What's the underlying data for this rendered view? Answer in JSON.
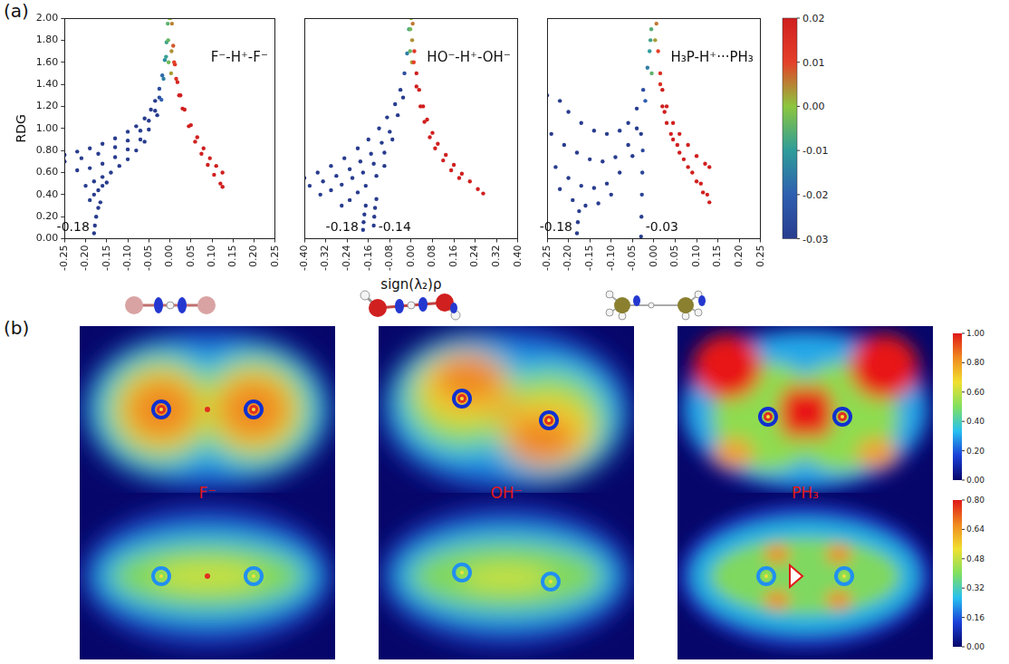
{
  "panel_labels": [
    "(a)",
    "(b)"
  ],
  "chart_data": [
    {
      "type": "scatter",
      "title": "F⁻-H⁺-F⁻",
      "ylabel": "RDG",
      "grid": false,
      "xlim": [
        -0.25,
        0.25
      ],
      "xticks": [
        -0.25,
        {
          "value": -0.2,
          "label": "-0.20"
        },
        -0.15,
        {
          "value": -0.1,
          "label": "-0.10"
        },
        -0.05,
        {
          "value": 0,
          "label": "0.00"
        },
        0.05,
        {
          "value": 0.1,
          "label": "0.10"
        },
        0.15,
        {
          "value": 0.2,
          "label": "0.20"
        },
        0.25
      ],
      "ylim": [
        0,
        2
      ],
      "yticks": [
        {
          "value": 0,
          "label": "0.00"
        },
        {
          "value": 0.2,
          "label": "0.20"
        },
        {
          "value": 0.4,
          "label": "0.40"
        },
        {
          "value": 0.6,
          "label": "0.60"
        },
        {
          "value": 0.8,
          "label": "0.80"
        },
        {
          "value": 1,
          "label": "1.00"
        },
        {
          "value": 1.2,
          "label": "1.20"
        },
        {
          "value": 1.4,
          "label": "1.40"
        },
        {
          "value": 1.6,
          "label": "1.60"
        },
        {
          "value": 1.8,
          "label": "1.80"
        },
        {
          "value": 2,
          "label": "2.00"
        }
      ],
      "x": [
        -0.25,
        -0.22,
        -0.19,
        -0.16,
        -0.13,
        -0.1,
        -0.08,
        -0.06,
        -0.045,
        -0.035,
        -0.025,
        -0.018,
        -0.012,
        -0.008,
        -0.005,
        -0.25,
        -0.21,
        -0.17,
        -0.13,
        -0.1,
        -0.07,
        -0.05,
        -0.035,
        -0.025,
        -0.015,
        -0.009,
        -0.22,
        -0.19,
        -0.16,
        -0.13,
        -0.1,
        -0.07,
        -0.05,
        -0.03,
        -0.02,
        -0.2,
        -0.18,
        -0.16,
        -0.14,
        -0.12,
        -0.1,
        -0.08,
        -0.06,
        -0.19,
        -0.18,
        -0.17,
        -0.16,
        -0.15,
        -0.18,
        -0.178,
        -0.175,
        -0.17,
        -0.165,
        -0.004,
        -0.003,
        -0.001,
        0.001,
        0.003,
        0.004,
        0.005,
        0.008,
        0.012,
        0.018,
        0.025,
        0.035,
        0.05,
        0.065,
        0.08,
        0.095,
        0.11,
        0.125,
        0.01,
        0.015,
        0.022,
        0.03,
        0.045,
        0.06,
        0.075,
        0.09,
        0.105,
        0.12,
        0.125
      ],
      "values": [
        0.76,
        0.79,
        0.82,
        0.86,
        0.91,
        0.97,
        1.02,
        1.09,
        1.17,
        1.25,
        1.36,
        1.48,
        1.62,
        1.78,
        1.95,
        0.7,
        0.73,
        0.77,
        0.83,
        0.89,
        0.98,
        1.07,
        1.16,
        1.28,
        1.45,
        1.65,
        0.62,
        0.64,
        0.68,
        0.74,
        0.81,
        0.9,
        0.99,
        1.12,
        1.26,
        0.48,
        0.52,
        0.56,
        0.6,
        0.66,
        0.72,
        0.8,
        0.88,
        0.35,
        0.4,
        0.44,
        0.48,
        0.51,
        0.05,
        0.12,
        0.2,
        0.28,
        0.33,
        1.8,
        1.6,
        2.0,
        2.0,
        1.5,
        1.7,
        1.95,
        1.75,
        1.58,
        1.42,
        1.3,
        1.17,
        1.03,
        0.92,
        0.82,
        0.73,
        0.66,
        0.6,
        1.6,
        1.45,
        1.3,
        1.18,
        1.02,
        0.88,
        0.77,
        0.67,
        0.58,
        0.5,
        0.47
      ],
      "annotations": [
        {
          "text": "-0.18",
          "x": -0.18,
          "y": 0.1
        }
      ]
    },
    {
      "type": "scatter",
      "title": "HO⁻-H⁺-OH⁻",
      "xlabel": "sign(λ₂)ρ",
      "grid": false,
      "tick_labels": "x",
      "xlim": [
        -0.4,
        0.4
      ],
      "xticks": [
        {
          "value": -0.4,
          "label": "-0.40"
        },
        -0.32,
        -0.24,
        -0.16,
        -0.08,
        {
          "value": 0,
          "label": "0.00"
        },
        0.08,
        0.16,
        0.24,
        0.32,
        {
          "value": 0.4,
          "label": "0.40"
        }
      ],
      "ylim": [
        0,
        2
      ],
      "x": [
        -0.4,
        -0.35,
        -0.3,
        -0.25,
        -0.2,
        -0.16,
        -0.12,
        -0.09,
        -0.06,
        -0.04,
        -0.025,
        -0.015,
        -0.008,
        -0.38,
        -0.33,
        -0.28,
        -0.23,
        -0.19,
        -0.15,
        -0.11,
        -0.08,
        -0.05,
        -0.03,
        -0.34,
        -0.3,
        -0.26,
        -0.22,
        -0.18,
        -0.14,
        -0.1,
        -0.07,
        -0.26,
        -0.23,
        -0.2,
        -0.17,
        -0.13,
        -0.1,
        -0.18,
        -0.178,
        -0.175,
        -0.17,
        -0.14,
        -0.138,
        -0.135,
        -0.13,
        -0.004,
        -0.003,
        0,
        0.003,
        0.004,
        0.006,
        0.012,
        0.02,
        0.03,
        0.045,
        0.06,
        0.08,
        0.1,
        0.13,
        0.16,
        0.19,
        0.22,
        0.25,
        0.27,
        0.01,
        0.02,
        0.035,
        0.05,
        0.07,
        0.09,
        0.12,
        0.15,
        0.18
      ],
      "values": [
        0.55,
        0.6,
        0.66,
        0.73,
        0.82,
        0.9,
        1.0,
        1.1,
        1.22,
        1.35,
        1.5,
        1.68,
        1.9,
        0.48,
        0.52,
        0.57,
        0.63,
        0.7,
        0.77,
        0.87,
        0.97,
        1.12,
        1.28,
        0.4,
        0.44,
        0.49,
        0.55,
        0.6,
        0.68,
        0.78,
        0.9,
        0.3,
        0.35,
        0.42,
        0.48,
        0.57,
        0.66,
        0.08,
        0.15,
        0.22,
        0.3,
        0.12,
        0.2,
        0.28,
        0.36,
        1.7,
        1.9,
        2.0,
        1.6,
        1.8,
        1.95,
        1.7,
        1.5,
        1.35,
        1.2,
        1.08,
        0.96,
        0.86,
        0.76,
        0.67,
        0.59,
        0.52,
        0.45,
        0.41,
        1.6,
        1.38,
        1.2,
        1.06,
        0.92,
        0.82,
        0.71,
        0.62,
        0.55
      ],
      "annotations": [
        {
          "text": "-0.18",
          "x": -0.18,
          "y": 0.1
        },
        {
          "text": "-0.14",
          "x": -0.14,
          "y": 0.1
        }
      ]
    },
    {
      "type": "scatter",
      "title": "H₃P-H⁺···PH₃",
      "grid": false,
      "tick_labels": "x",
      "xlim": [
        -0.25,
        0.25
      ],
      "xticks": [
        -0.25,
        {
          "value": -0.2,
          "label": "-0.20"
        },
        -0.15,
        {
          "value": -0.1,
          "label": "-0.10"
        },
        -0.05,
        {
          "value": 0,
          "label": "0.00"
        },
        0.05,
        {
          "value": 0.1,
          "label": "0.10"
        },
        0.15,
        {
          "value": 0.2,
          "label": "0.20"
        },
        0.25
      ],
      "ylim": [
        0,
        2
      ],
      "x": [
        -0.25,
        -0.22,
        -0.2,
        -0.17,
        -0.14,
        -0.11,
        -0.08,
        -0.06,
        -0.04,
        -0.025,
        -0.015,
        -0.008,
        -0.24,
        -0.21,
        -0.18,
        -0.15,
        -0.12,
        -0.09,
        -0.06,
        -0.04,
        -0.02,
        -0.23,
        -0.2,
        -0.17,
        -0.14,
        -0.11,
        -0.08,
        -0.05,
        -0.03,
        -0.22,
        -0.19,
        -0.16,
        -0.13,
        -0.1,
        -0.18,
        -0.178,
        -0.175,
        -0.03,
        -0.029,
        -0.028,
        -0.027,
        -0.026,
        -0.01,
        -0.006,
        -0.005,
        0.003,
        0.006,
        0.01,
        0.015,
        0.02,
        0.03,
        0.045,
        0.06,
        0.08,
        0.1,
        0.12,
        0.13,
        0.02,
        0.03,
        0.045,
        0.06,
        0.08,
        0.1,
        0.115,
        0.13,
        0.015,
        0.025,
        0.04,
        0.055,
        0.07,
        0.09,
        0.11,
        0.125
      ],
      "values": [
        1.3,
        1.25,
        1.15,
        1.05,
        0.98,
        0.95,
        0.98,
        1.05,
        1.18,
        1.35,
        1.55,
        1.8,
        0.95,
        0.85,
        0.78,
        0.72,
        0.7,
        0.74,
        0.85,
        1.0,
        1.25,
        0.65,
        0.55,
        0.48,
        0.46,
        0.5,
        0.6,
        0.75,
        0.95,
        0.45,
        0.35,
        0.3,
        0.32,
        0.4,
        0.05,
        0.15,
        0.25,
        0.02,
        0.2,
        0.4,
        0.6,
        0.8,
        1.7,
        1.9,
        1.5,
        1.8,
        1.95,
        1.7,
        1.5,
        1.35,
        1.2,
        1.05,
        0.95,
        0.85,
        0.75,
        0.68,
        0.65,
        1.2,
        1.05,
        0.9,
        0.78,
        0.65,
        0.52,
        0.42,
        0.33,
        1.4,
        1.15,
        0.95,
        0.85,
        0.72,
        0.6,
        0.5,
        0.4
      ],
      "annotations": [
        {
          "text": "-0.18",
          "x": -0.18,
          "y": 0.1
        },
        {
          "text": "-0.03",
          "x": -0.03,
          "y": 0.1
        }
      ]
    }
  ],
  "colorbar": {
    "range": [
      -0.03,
      0.02
    ],
    "ticks": [
      0.02,
      0.01,
      {
        "value": 0,
        "label": "0.00"
      },
      -0.01,
      -0.02,
      -0.03
    ],
    "colors": [
      "#283c8e",
      "#2f5fb0",
      "#2e9c9a",
      "#8cc63e",
      "#e4402a",
      "#d01f1f"
    ]
  },
  "maps": {
    "labels": [
      "F⁻",
      "OH⁻",
      "PH₃"
    ],
    "colorbars": [
      {
        "range": [
          0,
          1
        ],
        "ticks": [
          {
            "value": 0,
            "label": "0.00"
          },
          {
            "value": 0.2,
            "label": "0.20"
          },
          {
            "value": 0.4,
            "label": "0.40"
          },
          {
            "value": 0.6,
            "label": "0.60"
          },
          {
            "value": 0.8,
            "label": "0.80"
          },
          {
            "value": 1,
            "label": "1.00"
          }
        ],
        "colors": [
          "#06066a",
          "#1a40d8",
          "#28c0f0",
          "#80e060",
          "#f0e030",
          "#f08a20",
          "#e01818"
        ]
      },
      {
        "range": [
          0,
          0.8
        ],
        "ticks": [
          {
            "value": 0,
            "label": "0.00"
          },
          0.16,
          0.32,
          0.48,
          0.64,
          {
            "value": 0.8,
            "label": "0.80"
          }
        ],
        "colors": [
          "#06066a",
          "#1a40d8",
          "#28c0f0",
          "#80e060",
          "#f0e030",
          "#f08a20",
          "#e01818"
        ]
      }
    ]
  }
}
